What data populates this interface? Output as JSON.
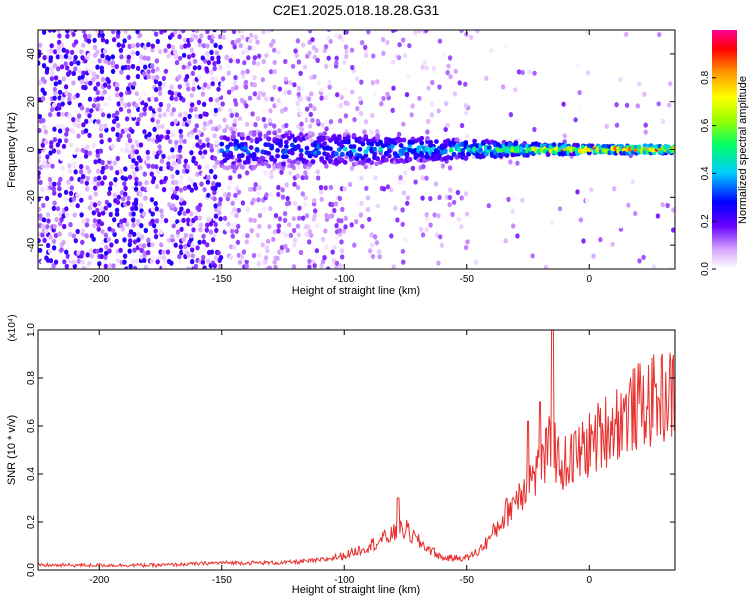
{
  "figure": {
    "title": "C2E1.2025.018.18.28.G31"
  },
  "chart_data": [
    {
      "type": "heatmap",
      "xlabel": "Height of straight line (km)",
      "ylabel": "Frequency (Hz)",
      "xlim": [
        -225,
        35
      ],
      "ylim": [
        -50,
        50
      ],
      "xticks": [
        -200,
        -150,
        -100,
        -50,
        0
      ],
      "yticks": [
        -40,
        -20,
        0,
        20,
        40
      ],
      "colorbar": {
        "label": "Normalized spectral amplitude",
        "range": [
          0.0,
          1.0
        ],
        "ticks": [
          0.0,
          0.2,
          0.4,
          0.6,
          0.8
        ]
      },
      "ridge": {
        "frequency_hz": 0,
        "description_points": [
          {
            "x": -150,
            "width_hz": 10,
            "amp": 0.35
          },
          {
            "x": -100,
            "width_hz": 8,
            "amp": 0.4
          },
          {
            "x": -50,
            "width_hz": 5,
            "amp": 0.5
          },
          {
            "x": -20,
            "width_hz": 3,
            "amp": 0.75
          },
          {
            "x": 0,
            "width_hz": 2,
            "amp": 0.95
          },
          {
            "x": 35,
            "width_hz": 2,
            "amp": 0.95
          }
        ]
      },
      "grid": false
    },
    {
      "type": "line",
      "xlabel": "Height of straight line (km)",
      "ylabel": "SNR (10 * v/v)",
      "y_multiplier": "(x10⁴)",
      "xlim": [
        -225,
        35
      ],
      "ylim": [
        0.0,
        1.0
      ],
      "xticks": [
        -200,
        -150,
        -100,
        -50,
        0
      ],
      "yticks": [
        0.0,
        0.2,
        0.4,
        0.6,
        0.8,
        1.0
      ],
      "color": "#e8302e",
      "series": [
        {
          "x": [
            -225,
            -200,
            -175,
            -150,
            -125,
            -110,
            -100,
            -90,
            -80,
            -75,
            -70,
            -60,
            -50,
            -45,
            -40,
            -35,
            -30,
            -25,
            -20,
            -17,
            -15,
            -13,
            -10,
            -5,
            0,
            5,
            10,
            15,
            20,
            25,
            30,
            35
          ],
          "values": [
            0.02,
            0.02,
            0.02,
            0.03,
            0.03,
            0.04,
            0.06,
            0.1,
            0.15,
            0.17,
            0.12,
            0.05,
            0.05,
            0.08,
            0.14,
            0.22,
            0.3,
            0.37,
            0.42,
            0.48,
            0.56,
            0.45,
            0.44,
            0.48,
            0.52,
            0.57,
            0.61,
            0.65,
            0.68,
            0.7,
            0.72,
            0.73
          ],
          "spikes": [
            {
              "x": -15,
              "y": 1.0
            },
            {
              "x": -20,
              "y": 0.7
            },
            {
              "x": -25,
              "y": 0.62
            },
            {
              "x": -78,
              "y": 0.3
            }
          ]
        }
      ]
    }
  ]
}
